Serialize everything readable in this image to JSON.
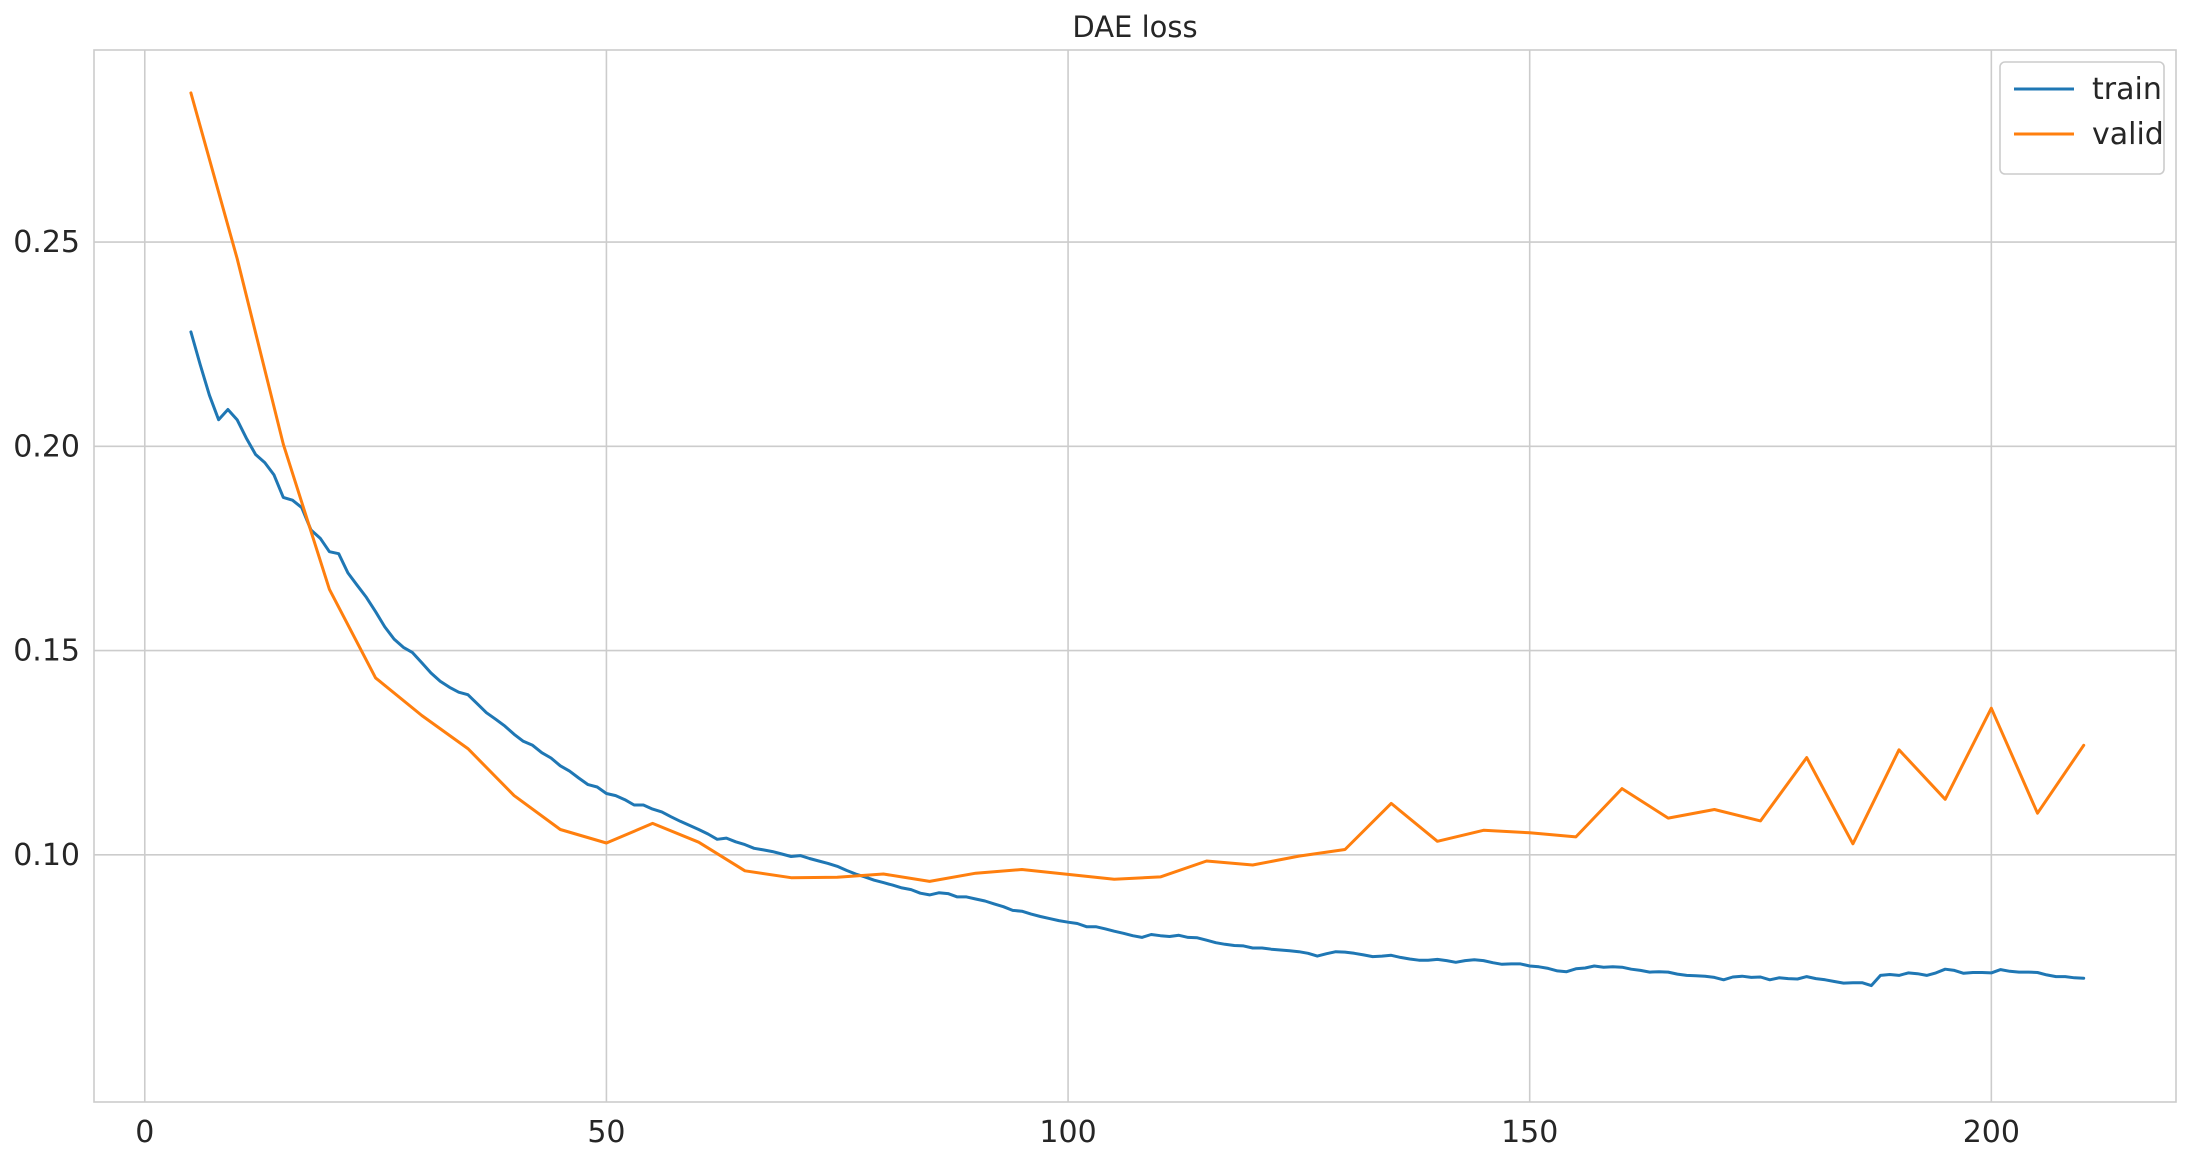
{
  "chart_data": {
    "type": "line",
    "title": "DAE loss",
    "xlabel": "",
    "ylabel": "",
    "xlim": [
      -5.5,
      220
    ],
    "ylim": [
      0.0395,
      0.297
    ],
    "x_ticks": [
      0,
      50,
      100,
      150,
      200
    ],
    "x_tick_labels": [
      "0",
      "50",
      "100",
      "150",
      "200"
    ],
    "y_ticks": [
      0.1,
      0.15,
      0.2,
      0.25
    ],
    "y_tick_labels": [
      "0.10",
      "0.15",
      "0.20",
      "0.25"
    ],
    "grid": true,
    "legend_position": "top-right",
    "series": [
      {
        "name": "train",
        "color": "#1f77b4",
        "x": [
          5,
          6,
          7,
          8,
          9,
          10,
          11,
          12,
          13,
          14,
          15,
          16,
          17,
          18,
          19,
          20,
          21,
          22,
          23,
          24,
          25,
          26,
          27,
          28,
          29,
          30,
          31,
          32,
          33,
          34,
          35,
          36,
          37,
          38,
          39,
          40,
          41,
          42,
          43,
          44,
          45,
          46,
          47,
          48,
          49,
          50,
          51,
          52,
          53,
          54,
          55,
          56,
          57,
          58,
          59,
          60,
          61,
          62,
          63,
          64,
          65,
          66,
          67,
          68,
          69,
          70,
          71,
          72,
          73,
          74,
          75,
          76,
          77,
          78,
          79,
          80,
          81,
          82,
          83,
          84,
          85,
          86,
          87,
          88,
          89,
          90,
          91,
          92,
          93,
          94,
          95,
          96,
          97,
          98,
          99,
          100,
          101,
          102,
          103,
          104,
          105,
          106,
          107,
          108,
          109,
          110,
          111,
          112,
          113,
          114,
          115,
          116,
          117,
          118,
          119,
          120,
          121,
          122,
          123,
          124,
          125,
          126,
          127,
          128,
          129,
          130,
          131,
          132,
          133,
          134,
          135,
          136,
          137,
          138,
          139,
          140,
          141,
          142,
          143,
          144,
          145,
          146,
          147,
          148,
          149,
          150,
          151,
          152,
          153,
          154,
          155,
          156,
          157,
          158,
          159,
          160,
          161,
          162,
          163,
          164,
          165,
          166,
          167,
          168,
          169,
          170,
          171,
          172,
          173,
          174,
          175,
          176,
          177,
          178,
          179,
          180,
          181,
          182,
          183,
          184,
          185,
          186,
          187,
          188,
          189,
          190,
          191,
          192,
          193,
          194,
          195,
          196,
          197,
          198,
          199,
          200,
          201,
          202,
          203,
          204,
          205,
          206,
          207,
          208,
          209,
          210
        ],
        "values": [
          0.228,
          0.22,
          0.2125,
          0.2065,
          0.209,
          0.2065,
          0.202,
          0.198,
          0.196,
          0.193,
          0.1875,
          0.1868,
          0.185,
          0.1795,
          0.1775,
          0.1742,
          0.1737,
          0.169,
          0.166,
          0.163,
          0.1595,
          0.1558,
          0.1528,
          0.1508,
          0.1495,
          0.147,
          0.1445,
          0.1425,
          0.141,
          0.1398,
          0.1392,
          0.137,
          0.1348,
          0.1332,
          0.1315,
          0.1295,
          0.1278,
          0.1268,
          0.125,
          0.1237,
          0.1218,
          0.1205,
          0.1188,
          0.1172,
          0.1166,
          0.115,
          0.1145,
          0.1135,
          0.1122,
          0.1122,
          0.1112,
          0.1105,
          0.1093,
          0.1082,
          0.1072,
          0.1062,
          0.1051,
          0.1038,
          0.1041,
          0.1032,
          0.1025,
          0.1016,
          0.1012,
          0.1008,
          0.1002,
          0.0996,
          0.0998,
          0.0991,
          0.0985,
          0.0979,
          0.0972,
          0.0962,
          0.0953,
          0.0946,
          0.0938,
          0.0932,
          0.0926,
          0.0919,
          0.0915,
          0.0906,
          0.0902,
          0.0907,
          0.0905,
          0.0897,
          0.0897,
          0.0892,
          0.0887,
          0.088,
          0.0873,
          0.0864,
          0.0862,
          0.0855,
          0.0849,
          0.0844,
          0.0839,
          0.0835,
          0.0832,
          0.0824,
          0.0824,
          0.0819,
          0.0813,
          0.0808,
          0.0802,
          0.0798,
          0.0805,
          0.0802,
          0.08,
          0.0803,
          0.0798,
          0.0797,
          0.0791,
          0.0785,
          0.0781,
          0.0778,
          0.0777,
          0.0772,
          0.0772,
          0.0769,
          0.0767,
          0.0765,
          0.0763,
          0.0759,
          0.0752,
          0.0758,
          0.0763,
          0.0762,
          0.0759,
          0.0755,
          0.0751,
          0.0752,
          0.0754,
          0.0749,
          0.0745,
          0.0742,
          0.0742,
          0.0744,
          0.0741,
          0.0737,
          0.0741,
          0.0743,
          0.0741,
          0.0736,
          0.0732,
          0.0733,
          0.0733,
          0.0728,
          0.0726,
          0.0722,
          0.0716,
          0.0714,
          0.0721,
          0.0723,
          0.0728,
          0.0725,
          0.0726,
          0.0725,
          0.072,
          0.0717,
          0.0713,
          0.0714,
          0.0713,
          0.0708,
          0.0705,
          0.0704,
          0.0703,
          0.07,
          0.0694,
          0.0701,
          0.0703,
          0.07,
          0.0701,
          0.0694,
          0.0699,
          0.0697,
          0.0696,
          0.0702,
          0.0697,
          0.0694,
          0.069,
          0.0686,
          0.0687,
          0.0687,
          0.068,
          0.0705,
          0.0707,
          0.0705,
          0.0711,
          0.0709,
          0.0705,
          0.0711,
          0.072,
          0.0717,
          0.071,
          0.0712,
          0.0712,
          0.0711,
          0.0719,
          0.0715,
          0.0713,
          0.0713,
          0.0712,
          0.0706,
          0.0702,
          0.0702,
          0.0699,
          0.0698
        ]
      },
      {
        "name": "valid",
        "color": "#ff7f0e",
        "x": [
          5,
          10,
          15,
          20,
          25,
          30,
          35,
          40,
          45,
          50,
          55,
          60,
          65,
          70,
          75,
          80,
          85,
          90,
          95,
          100,
          105,
          110,
          115,
          120,
          125,
          130,
          135,
          140,
          145,
          150,
          155,
          160,
          165,
          170,
          175,
          180,
          185,
          190,
          195,
          200,
          205,
          210
        ],
        "values": [
          0.2865,
          0.246,
          0.2005,
          0.165,
          0.1433,
          0.1341,
          0.126,
          0.1145,
          0.1062,
          0.1029,
          0.1077,
          0.1031,
          0.0961,
          0.0944,
          0.0945,
          0.0953,
          0.0935,
          0.0955,
          0.0964,
          0.0952,
          0.094,
          0.0946,
          0.0985,
          0.0975,
          0.0997,
          0.1013,
          0.1126,
          0.1033,
          0.106,
          0.1054,
          0.1044,
          0.1162,
          0.109,
          0.1111,
          0.1083,
          0.1238,
          0.1027,
          0.1257,
          0.1136,
          0.1359,
          0.1102,
          0.1268
        ]
      }
    ]
  }
}
